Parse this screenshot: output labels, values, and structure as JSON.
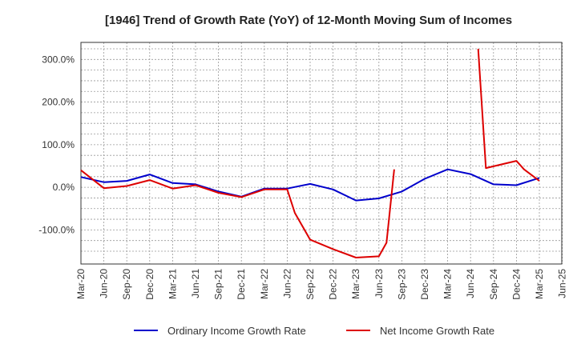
{
  "chart_data": {
    "type": "line",
    "title": "[1946]  Trend of Growth Rate (YoY) of 12-Month Moving Sum of Incomes",
    "xlabel": "",
    "ylabel": "",
    "ylim": [
      -180,
      340
    ],
    "yticks": [
      300,
      200,
      100,
      0,
      -100
    ],
    "ytick_labels": [
      "300.0%",
      "200.0%",
      "100.0%",
      "0.0%",
      "-100.0%"
    ],
    "xtick_labels": [
      "Mar-20",
      "Jun-20",
      "Sep-20",
      "Dec-20",
      "Mar-21",
      "Jun-21",
      "Sep-21",
      "Dec-21",
      "Mar-22",
      "Jun-22",
      "Sep-22",
      "Dec-22",
      "Mar-23",
      "Jun-23",
      "Sep-23",
      "Dec-23",
      "Mar-24",
      "Jun-24",
      "Sep-24",
      "Dec-24",
      "Mar-25",
      "Jun-25"
    ],
    "grid": true,
    "legend_position": "bottom",
    "series": [
      {
        "name": "Ordinary Income Growth Rate",
        "color": "#0000cc",
        "points": [
          [
            "Mar-20",
            24
          ],
          [
            "Jun-20",
            12
          ],
          [
            "Sep-20",
            15
          ],
          [
            "Dec-20",
            30
          ],
          [
            "Mar-21",
            10
          ],
          [
            "Jun-21",
            7
          ],
          [
            "Sep-21",
            -10
          ],
          [
            "Dec-21",
            -22
          ],
          [
            "Mar-22",
            -3
          ],
          [
            "Jun-22",
            -3
          ],
          [
            "Sep-22",
            8
          ],
          [
            "Dec-22",
            -5
          ],
          [
            "Mar-23",
            -31
          ],
          [
            "Jun-23",
            -26
          ],
          [
            "Sep-23",
            -10
          ],
          [
            "Dec-23",
            20
          ],
          [
            "Mar-24",
            42
          ],
          [
            "Jun-24",
            31
          ],
          [
            "Sep-24",
            7
          ],
          [
            "Dec-24",
            5
          ],
          [
            "Mar-25",
            22
          ]
        ]
      },
      {
        "name": "Net Income Growth Rate",
        "color": "#dd0000",
        "segments": [
          [
            [
              "Mar-20",
              40
            ],
            [
              "Jun-20",
              -2
            ],
            [
              "Sep-20",
              3
            ],
            [
              "Dec-20",
              17
            ],
            [
              "Mar-21",
              -3
            ],
            [
              "Jun-21",
              5
            ],
            [
              "Sep-21",
              -13
            ],
            [
              "Dec-21",
              -23
            ],
            [
              "Mar-22",
              -5
            ],
            [
              "Jun-22",
              -5
            ],
            [
              "Jul-22",
              -60
            ],
            [
              "Sep-22",
              -123
            ],
            [
              "Dec-22",
              -145
            ],
            [
              "Mar-23",
              -165
            ],
            [
              "Jun-23",
              -162
            ],
            [
              "Jul-23",
              -130
            ],
            [
              "Aug-23",
              42
            ]
          ],
          [
            [
              "Jul-24",
              325
            ],
            [
              "Aug-24",
              45
            ],
            [
              "Dec-24",
              62
            ],
            [
              "Jan-25",
              42
            ],
            [
              "Mar-25",
              15
            ]
          ]
        ]
      }
    ]
  }
}
